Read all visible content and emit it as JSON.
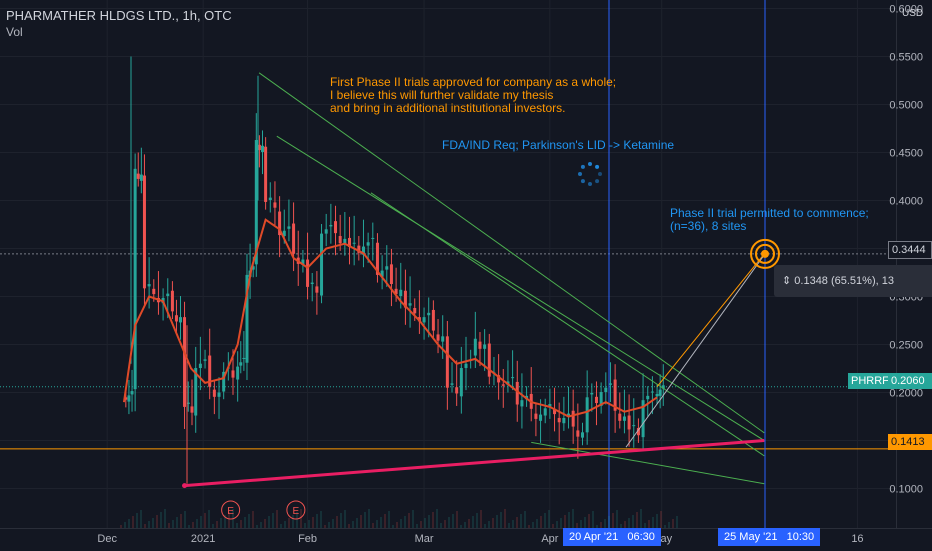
{
  "header": {
    "title": "PHARMATHER HLDGS LTD., 1h, OTC",
    "volume_label": "Vol",
    "currency": "USD"
  },
  "annotations": {
    "note_phase2_approved": "First Phase II trials approved for company as a whole;\nI believe this will further validate my thesis\nand bring in additional institutional investors.",
    "note_fda": "FDA/IND Req; Parkinson's LID -> Ketamine",
    "note_phase2_permitted": "Phase II trial permitted to commence;\n(n=36), 8 sites",
    "measure": "0.1348 (65.51%), 13",
    "earnings_marker": "E"
  },
  "price_tags": {
    "crosshair_price": "0.3444",
    "symbol": "PHRRF",
    "last_price": "0.2060",
    "support_price": "0.1413"
  },
  "time_tags": {
    "crosshair_date": "20 Apr '21",
    "crosshair_time": "06:30",
    "target_date": "25 May '21",
    "target_time": "10:30"
  },
  "colors": {
    "background": "#131722",
    "candle_up": "#26a69a",
    "candle_down": "#ef5350",
    "moving_average": "#e04a28",
    "trendline": "#4caf50",
    "support_line": "#ff9800",
    "rising_trendline": "#e91e63",
    "annotation_orange": "#ff9800",
    "annotation_blue": "#2196f3",
    "crosshair": "#2962ff"
  },
  "chart_data": {
    "type": "candlestick",
    "title": "PHARMATHER HLDGS LTD., 1h, OTC",
    "xlabel": "",
    "ylabel": "USD",
    "ylim": [
      0.05,
      0.6
    ],
    "grid": true,
    "y_ticks": [
      "0.6000",
      "0.5500",
      "0.5000",
      "0.4500",
      "0.4000",
      "0.3500",
      "0.3000",
      "0.2500",
      "0.2000",
      "0.1500",
      "0.1000"
    ],
    "x_ticks": [
      {
        "label": "Dec",
        "x": 0.115
      },
      {
        "label": "2021",
        "x": 0.218
      },
      {
        "label": "Feb",
        "x": 0.33
      },
      {
        "label": "Mar",
        "x": 0.455
      },
      {
        "label": "Apr",
        "x": 0.59
      },
      {
        "label": "May",
        "x": 0.71
      },
      {
        "label": "16",
        "x": 0.92
      }
    ],
    "series": [
      {
        "name": "PHRRF",
        "type": "candlestick",
        "closes": [
          {
            "x": 0.135,
            "y": 0.2
          },
          {
            "x": 0.145,
            "y": 0.43
          },
          {
            "x": 0.155,
            "y": 0.31
          },
          {
            "x": 0.17,
            "y": 0.3
          },
          {
            "x": 0.185,
            "y": 0.28
          },
          {
            "x": 0.198,
            "y": 0.185
          },
          {
            "x": 0.21,
            "y": 0.23
          },
          {
            "x": 0.225,
            "y": 0.2
          },
          {
            "x": 0.24,
            "y": 0.22
          },
          {
            "x": 0.255,
            "y": 0.23
          },
          {
            "x": 0.265,
            "y": 0.33
          },
          {
            "x": 0.275,
            "y": 0.46
          },
          {
            "x": 0.285,
            "y": 0.4
          },
          {
            "x": 0.3,
            "y": 0.37
          },
          {
            "x": 0.315,
            "y": 0.34
          },
          {
            "x": 0.33,
            "y": 0.31
          },
          {
            "x": 0.345,
            "y": 0.37
          },
          {
            "x": 0.36,
            "y": 0.36
          },
          {
            "x": 0.375,
            "y": 0.35
          },
          {
            "x": 0.39,
            "y": 0.355
          },
          {
            "x": 0.405,
            "y": 0.33
          },
          {
            "x": 0.42,
            "y": 0.31
          },
          {
            "x": 0.435,
            "y": 0.29
          },
          {
            "x": 0.45,
            "y": 0.28
          },
          {
            "x": 0.465,
            "y": 0.26
          },
          {
            "x": 0.48,
            "y": 0.205
          },
          {
            "x": 0.495,
            "y": 0.23
          },
          {
            "x": 0.51,
            "y": 0.25
          },
          {
            "x": 0.525,
            "y": 0.215
          },
          {
            "x": 0.54,
            "y": 0.21
          },
          {
            "x": 0.555,
            "y": 0.195
          },
          {
            "x": 0.57,
            "y": 0.18
          },
          {
            "x": 0.585,
            "y": 0.185
          },
          {
            "x": 0.6,
            "y": 0.175
          },
          {
            "x": 0.615,
            "y": 0.16
          },
          {
            "x": 0.63,
            "y": 0.195
          },
          {
            "x": 0.645,
            "y": 0.205
          },
          {
            "x": 0.66,
            "y": 0.175
          },
          {
            "x": 0.675,
            "y": 0.16
          },
          {
            "x": 0.69,
            "y": 0.195
          },
          {
            "x": 0.705,
            "y": 0.206
          }
        ]
      },
      {
        "name": "Moving average",
        "type": "line",
        "points": [
          {
            "x": 0.133,
            "y": 0.19
          },
          {
            "x": 0.145,
            "y": 0.27
          },
          {
            "x": 0.16,
            "y": 0.3
          },
          {
            "x": 0.175,
            "y": 0.295
          },
          {
            "x": 0.19,
            "y": 0.26
          },
          {
            "x": 0.205,
            "y": 0.225
          },
          {
            "x": 0.22,
            "y": 0.21
          },
          {
            "x": 0.24,
            "y": 0.215
          },
          {
            "x": 0.255,
            "y": 0.25
          },
          {
            "x": 0.27,
            "y": 0.33
          },
          {
            "x": 0.285,
            "y": 0.38
          },
          {
            "x": 0.3,
            "y": 0.37
          },
          {
            "x": 0.315,
            "y": 0.34
          },
          {
            "x": 0.33,
            "y": 0.33
          },
          {
            "x": 0.35,
            "y": 0.35
          },
          {
            "x": 0.37,
            "y": 0.355
          },
          {
            "x": 0.39,
            "y": 0.345
          },
          {
            "x": 0.41,
            "y": 0.32
          },
          {
            "x": 0.43,
            "y": 0.295
          },
          {
            "x": 0.45,
            "y": 0.275
          },
          {
            "x": 0.47,
            "y": 0.25
          },
          {
            "x": 0.49,
            "y": 0.23
          },
          {
            "x": 0.51,
            "y": 0.235
          },
          {
            "x": 0.53,
            "y": 0.22
          },
          {
            "x": 0.55,
            "y": 0.205
          },
          {
            "x": 0.57,
            "y": 0.19
          },
          {
            "x": 0.59,
            "y": 0.185
          },
          {
            "x": 0.61,
            "y": 0.175
          },
          {
            "x": 0.63,
            "y": 0.18
          },
          {
            "x": 0.65,
            "y": 0.19
          },
          {
            "x": 0.67,
            "y": 0.18
          },
          {
            "x": 0.69,
            "y": 0.185
          },
          {
            "x": 0.705,
            "y": 0.195
          }
        ]
      }
    ],
    "trendlines": [
      {
        "name": "descending-1",
        "from": {
          "x": 0.278,
          "y": 0.533
        },
        "to": {
          "x": 0.82,
          "y": 0.158
        }
      },
      {
        "name": "descending-2",
        "from": {
          "x": 0.297,
          "y": 0.467
        },
        "to": {
          "x": 0.82,
          "y": 0.15
        }
      },
      {
        "name": "descending-3",
        "from": {
          "x": 0.398,
          "y": 0.408
        },
        "to": {
          "x": 0.82,
          "y": 0.134
        }
      },
      {
        "name": "lower-channel",
        "from": {
          "x": 0.57,
          "y": 0.148
        },
        "to": {
          "x": 0.82,
          "y": 0.105
        }
      },
      {
        "name": "rising-support",
        "from": {
          "x": 0.198,
          "y": 0.103
        },
        "to": {
          "x": 0.82,
          "y": 0.15
        }
      },
      {
        "name": "projection",
        "from": {
          "x": 0.705,
          "y": 0.206
        },
        "to": {
          "x": 0.82,
          "y": 0.3444
        }
      }
    ],
    "horizontal_lines": [
      {
        "name": "support",
        "y": 0.1413
      },
      {
        "name": "last-price",
        "y": 0.206
      },
      {
        "name": "crosshair",
        "y": 0.3444
      }
    ],
    "earnings_markers": [
      0.248,
      0.318
    ]
  }
}
